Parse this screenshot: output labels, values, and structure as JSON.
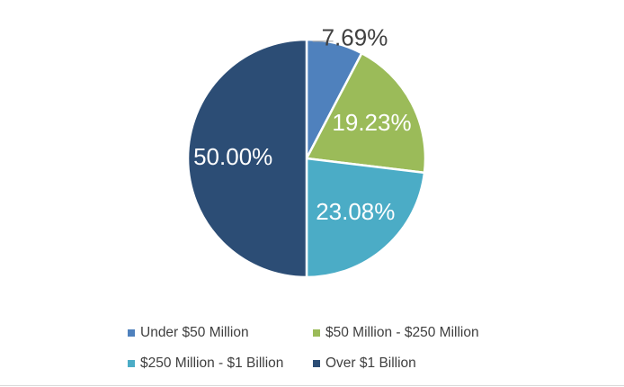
{
  "chart_data": {
    "type": "pie",
    "categories": [
      "Under $50 Million",
      "$50 Million - $250 Million",
      "$250 Million - $1 Billion",
      "Over $1 Billion"
    ],
    "values": [
      7.69,
      19.23,
      23.08,
      50.0
    ],
    "labels": [
      "7.69%",
      "19.23%",
      "23.08%",
      "50.00%"
    ],
    "colors": [
      "#4f81bd",
      "#9bbb59",
      "#4bacc6",
      "#2c4d75"
    ],
    "start_angle": "12 o'clock",
    "direction": "clockwise",
    "legend_position": "bottom"
  }
}
